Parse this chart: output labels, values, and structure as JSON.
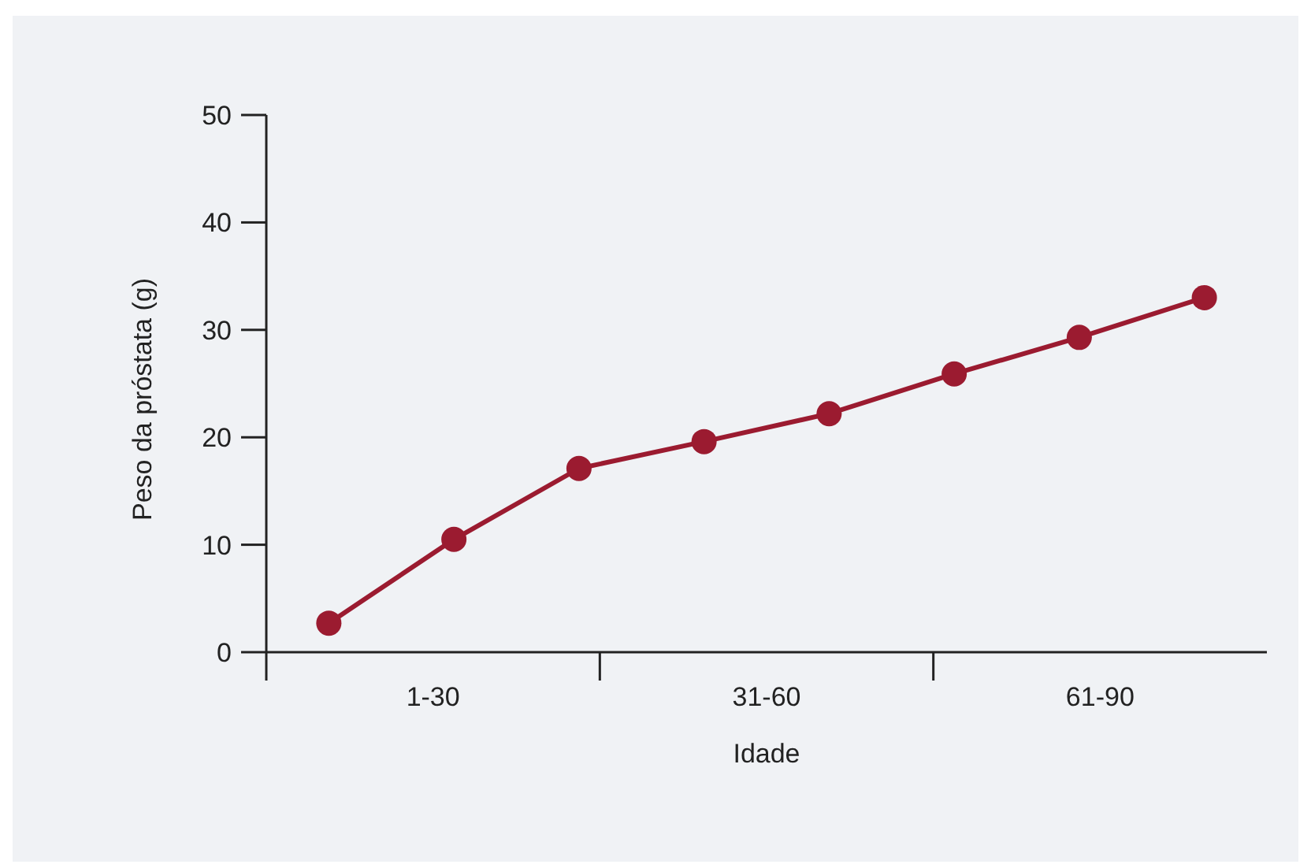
{
  "chart_data": {
    "type": "line",
    "xlabel": "Idade",
    "ylabel": "Peso da próstata (g)",
    "categories": [
      null,
      null,
      null,
      null,
      null,
      null,
      null,
      null
    ],
    "annotations": [
      "1-30",
      "31-60",
      "61-90"
    ],
    "series": [
      {
        "color": "#9b1b30",
        "values": [
          2.7,
          10.5,
          17.1,
          19.6,
          22.2,
          25.9,
          29.3,
          33.0
        ]
      }
    ],
    "ylim": [
      0,
      50
    ],
    "yticks": [
      0,
      10,
      20,
      30,
      40,
      50
    ],
    "marker": "circle",
    "line_style": "solid",
    "grid": false
  }
}
